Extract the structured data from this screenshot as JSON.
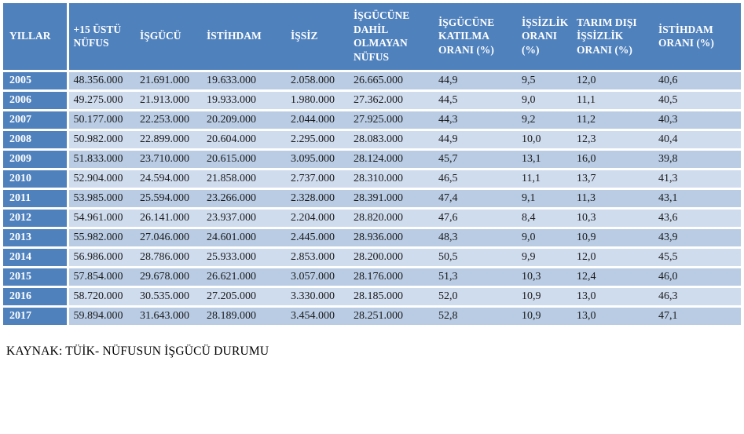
{
  "chart_data": {
    "type": "table",
    "columns": [
      "YILLAR",
      "+15 ÜSTÜ NÜFUS",
      "İŞGÜCÜ",
      "İSTİHDAM",
      "İŞSİZ",
      "İŞGÜCÜNE DAHİL OLMAYAN NÜFUS",
      "İŞGÜCÜNE KATILMA ORANI (%)",
      "İŞSİZLİK ORANI (%)",
      "TARIM DIŞI İŞSİZLİK ORANI (%)",
      "İSTİHDAM ORANI (%)"
    ],
    "rows": [
      [
        "2005",
        "48.356.000",
        "21.691.000",
        "19.633.000",
        "2.058.000",
        "26.665.000",
        "44,9",
        "9,5",
        "12,0",
        "40,6"
      ],
      [
        "2006",
        "49.275.000",
        "21.913.000",
        "19.933.000",
        "1.980.000",
        "27.362.000",
        "44,5",
        "9,0",
        "11,1",
        "40,5"
      ],
      [
        "2007",
        "50.177.000",
        "22.253.000",
        "20.209.000",
        "2.044.000",
        "27.925.000",
        "44,3",
        "9,2",
        "11,2",
        "40,3"
      ],
      [
        "2008",
        "50.982.000",
        "22.899.000",
        "20.604.000",
        "2.295.000",
        "28.083.000",
        "44,9",
        "10,0",
        "12,3",
        "40,4"
      ],
      [
        "2009",
        "51.833.000",
        "23.710.000",
        "20.615.000",
        "3.095.000",
        "28.124.000",
        "45,7",
        "13,1",
        "16,0",
        "39,8"
      ],
      [
        "2010",
        "52.904.000",
        "24.594.000",
        "21.858.000",
        "2.737.000",
        "28.310.000",
        "46,5",
        "11,1",
        "13,7",
        "41,3"
      ],
      [
        "2011",
        "53.985.000",
        "25.594.000",
        "23.266.000",
        "2.328.000",
        "28.391.000",
        "47,4",
        "9,1",
        "11,3",
        "43,1"
      ],
      [
        "2012",
        "54.961.000",
        "26.141.000",
        "23.937.000",
        "2.204.000",
        "28.820.000",
        "47,6",
        "8,4",
        "10,3",
        "43,6"
      ],
      [
        "2013",
        "55.982.000",
        "27.046.000",
        "24.601.000",
        "2.445.000",
        "28.936.000",
        "48,3",
        "9,0",
        "10,9",
        "43,9"
      ],
      [
        "2014",
        "56.986.000",
        "28.786.000",
        "25.933.000",
        "2.853.000",
        "28.200.000",
        "50,5",
        "9,9",
        "12,0",
        "45,5"
      ],
      [
        "2015",
        "57.854.000",
        "29.678.000",
        "26.621.000",
        "3.057.000",
        "28.176.000",
        "51,3",
        "10,3",
        "12,4",
        "46,0"
      ],
      [
        "2016",
        "58.720.000",
        "30.535.000",
        "27.205.000",
        "3.330.000",
        "28.185.000",
        "52,0",
        "10,9",
        "13,0",
        "46,3"
      ],
      [
        "2017",
        "59.894.000",
        "31.643.000",
        "28.189.000",
        "3.454.000",
        "28.251.000",
        "52,8",
        "10,9",
        "13,0",
        "47,1"
      ]
    ]
  },
  "footer": {
    "source": "KAYNAK: TÜİK- NÜFUSUN İŞGÜCÜ DURUMU"
  },
  "colors": {
    "header_bg": "#4f81bd",
    "header_text": "#ffffff",
    "row_band_dark": "#b9cce4",
    "row_band_light": "#cfdcee",
    "gap": "#ffffff"
  }
}
